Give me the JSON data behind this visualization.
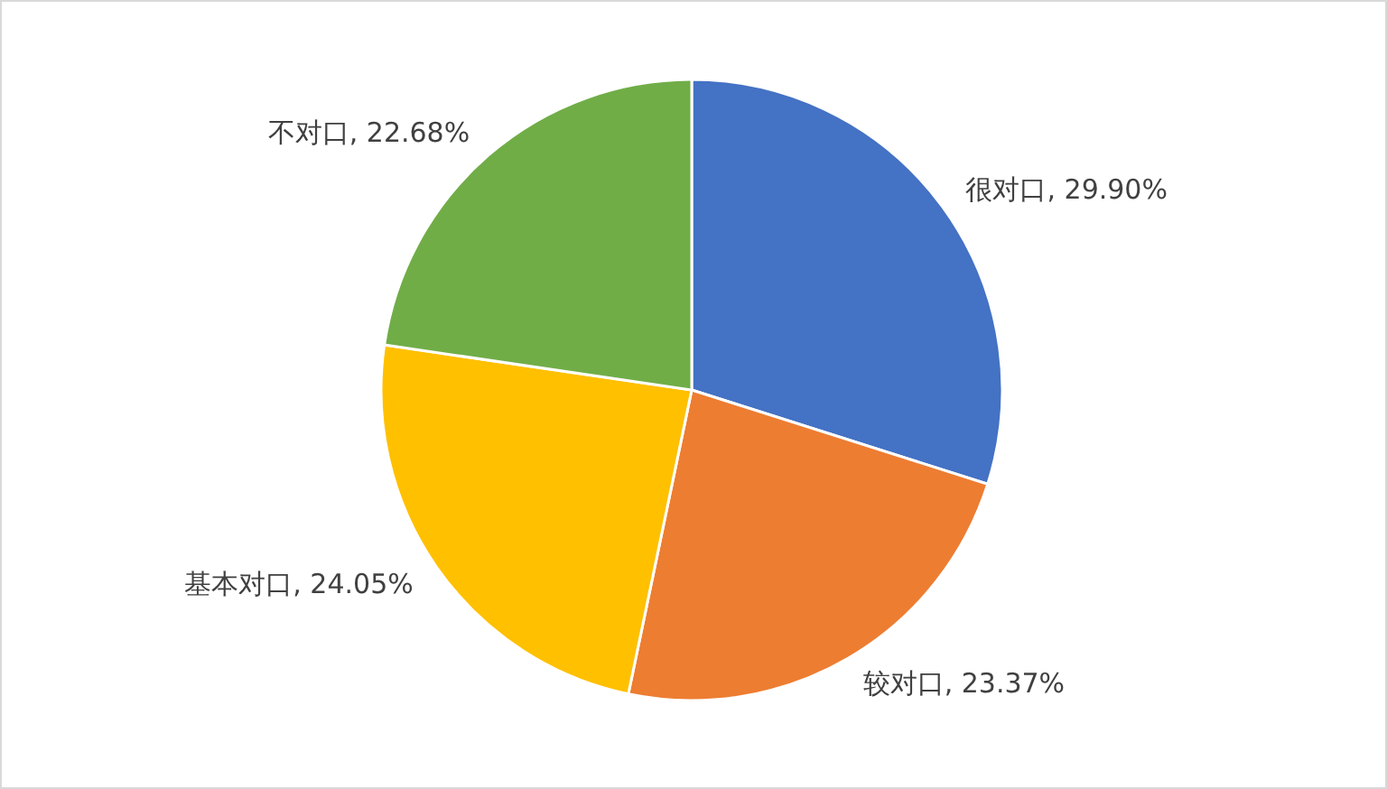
{
  "chart_data": {
    "type": "pie",
    "categories": [
      "很对口",
      "较对口",
      "基本对口",
      "不对口"
    ],
    "values": [
      29.9,
      23.37,
      24.05,
      22.68
    ],
    "value_labels": [
      "29.90%",
      "23.37%",
      "24.05%",
      "22.68%"
    ],
    "colors": [
      "#4472c4",
      "#ed7d31",
      "#ffc000",
      "#70ad47"
    ]
  }
}
